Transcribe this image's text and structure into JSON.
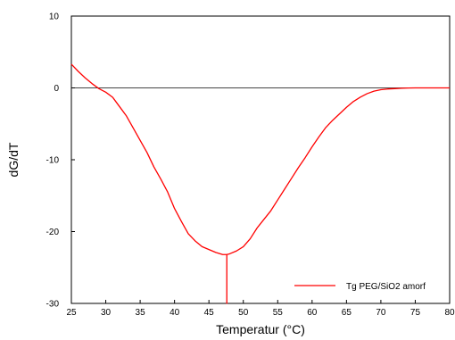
{
  "chart_data": {
    "type": "line",
    "title": "",
    "xlabel": "Temperatur  (°C)",
    "ylabel": "dG/dT",
    "xlim": [
      25,
      80
    ],
    "ylim": [
      -30,
      10
    ],
    "xticks": [
      "25",
      "30",
      "35",
      "40",
      "45",
      "50",
      "55",
      "60",
      "65",
      "70",
      "75",
      "80"
    ],
    "yticks": [
      "10",
      "0",
      "-10",
      "-20",
      "-30"
    ],
    "grid": false,
    "zero_line": true,
    "legend_position": "bottom-right",
    "series": [
      {
        "name": "Tg PEG/SiO2 amorf",
        "color": "#ff0000",
        "x": [
          25,
          26,
          27,
          28,
          29,
          30,
          31,
          32,
          33,
          34,
          35,
          36,
          37,
          38,
          39,
          40,
          41,
          42,
          43,
          44,
          45,
          46,
          47,
          47.6,
          47.6,
          47.6,
          48,
          49,
          50,
          51,
          52,
          53,
          54,
          55,
          56,
          57,
          58,
          59,
          60,
          61,
          62,
          63,
          64,
          65,
          66,
          67,
          68,
          69,
          70,
          71,
          72,
          73,
          74,
          75,
          76,
          77,
          78,
          79,
          80
        ],
        "y": [
          3.3,
          2.3,
          1.4,
          0.6,
          -0.1,
          -0.6,
          -1.3,
          -2.6,
          -3.9,
          -5.6,
          -7.3,
          -9.0,
          -11.0,
          -12.7,
          -14.5,
          -16.8,
          -18.6,
          -20.3,
          -21.3,
          -22.1,
          -22.5,
          -22.9,
          -23.2,
          -23.2,
          -30.0,
          -23.2,
          -23.1,
          -22.7,
          -22.1,
          -21.0,
          -19.5,
          -18.3,
          -17.1,
          -15.6,
          -14.1,
          -12.6,
          -11.1,
          -9.7,
          -8.2,
          -6.8,
          -5.5,
          -4.5,
          -3.6,
          -2.7,
          -1.9,
          -1.3,
          -0.8,
          -0.45,
          -0.25,
          -0.15,
          -0.1,
          -0.05,
          -0.02,
          0,
          0,
          0,
          0,
          0,
          0
        ]
      }
    ]
  }
}
